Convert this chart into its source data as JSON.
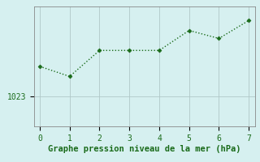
{
  "x": [
    0,
    1,
    2,
    3,
    4,
    5,
    6,
    7
  ],
  "y": [
    1024.5,
    1024.0,
    1025.3,
    1025.3,
    1025.3,
    1026.3,
    1025.9,
    1026.8
  ],
  "line_color": "#1a6b1a",
  "marker_style": "D",
  "marker_size": 2.5,
  "bg_color": "#d6f0f0",
  "grid_color": "#b0c8c8",
  "xlabel": "Graphe pression niveau de la mer (hPa)",
  "xlabel_color": "#1a6b1a",
  "xlabel_fontsize": 7.5,
  "tick_color": "#1a6b1a",
  "tick_fontsize": 7,
  "ytick_value": 1023,
  "ytick_label": "1023",
  "ylim_bottom": 1021.5,
  "ylim_top": 1027.5,
  "xlim_left": -0.2,
  "xlim_right": 7.2
}
